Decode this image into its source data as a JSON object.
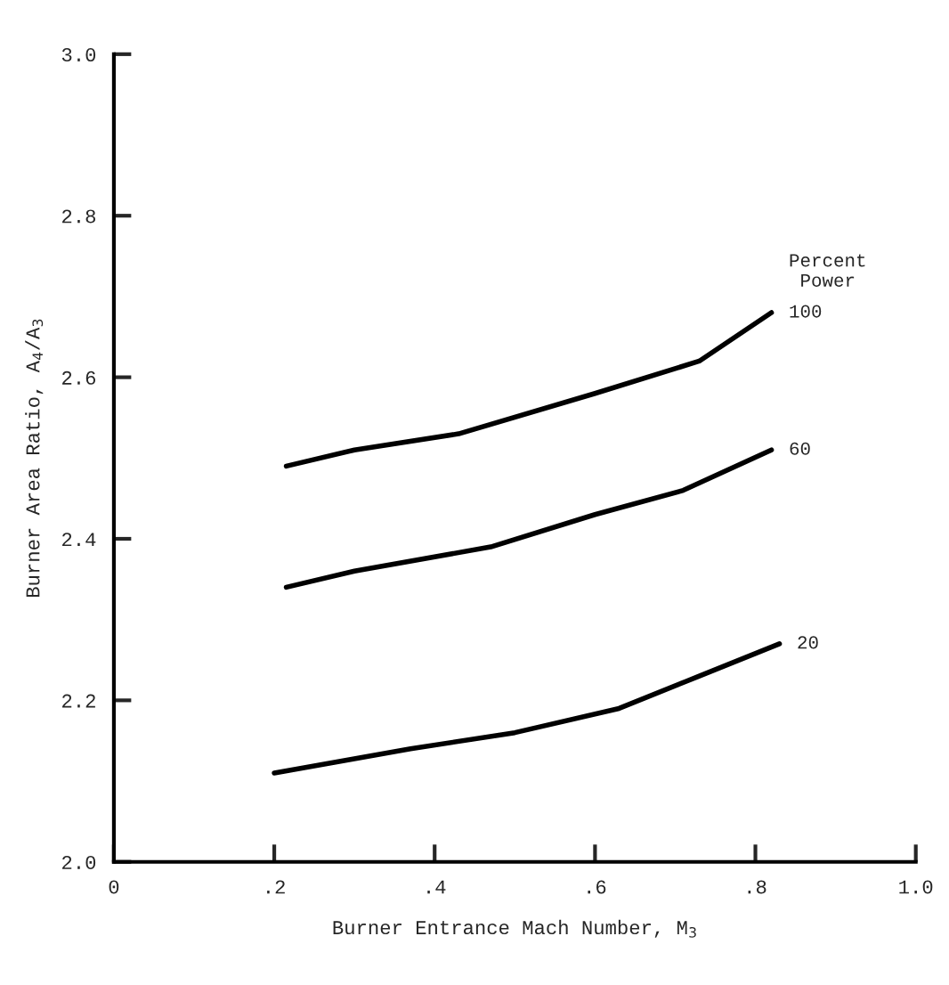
{
  "chart_data": {
    "type": "line",
    "xlabel": "Burner Entrance Mach Number, M$_{3}$",
    "ylabel": "Burner Area Ratio, A$_{4}$/A$_{3}$",
    "legend_title": "Percent\nPower",
    "xlim": [
      0,
      1.0
    ],
    "xticks": [
      0,
      {
        "value": 0.2,
        "label": ".2"
      },
      {
        "value": 0.4,
        "label": ".4"
      },
      {
        "value": 0.6,
        "label": ".6"
      },
      {
        "value": 0.8,
        "label": ".8"
      },
      {
        "value": 1.0,
        "label": "1.0"
      }
    ],
    "ylim": [
      2.0,
      3.0
    ],
    "yticks": [
      {
        "value": 2.0,
        "label": "2.0"
      },
      2.2,
      2.4,
      2.6,
      2.8,
      {
        "value": 3.0,
        "label": "3.0"
      }
    ],
    "series": [
      {
        "name": "100",
        "color": "#000000",
        "x": [
          0.215,
          0.3,
          0.43,
          0.6,
          0.73,
          0.82
        ],
        "values": [
          2.49,
          2.51,
          2.53,
          2.58,
          2.62,
          2.68
        ]
      },
      {
        "name": "60",
        "color": "#000000",
        "x": [
          0.215,
          0.3,
          0.47,
          0.6,
          0.71,
          0.82
        ],
        "values": [
          2.34,
          2.36,
          2.39,
          2.43,
          2.46,
          2.51
        ]
      },
      {
        "name": "20",
        "color": "#000000",
        "x": [
          0.2,
          0.37,
          0.5,
          0.63,
          0.73,
          0.83
        ],
        "values": [
          2.11,
          2.14,
          2.16,
          2.19,
          2.23,
          2.27
        ]
      }
    ]
  }
}
